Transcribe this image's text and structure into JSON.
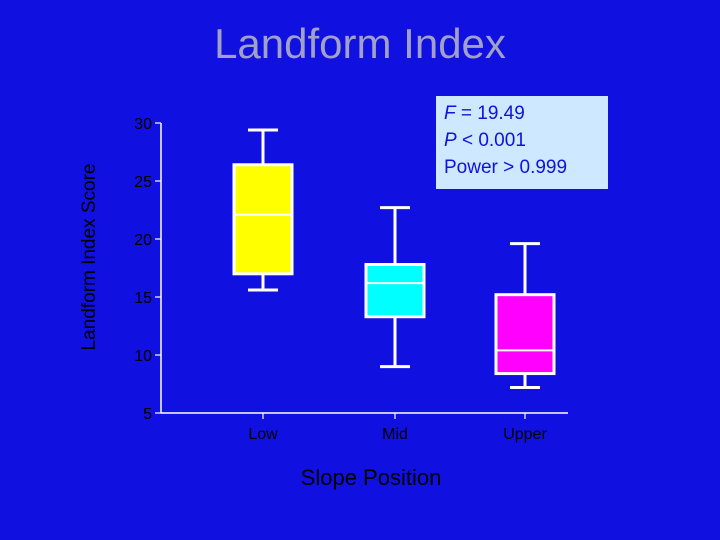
{
  "slide": {
    "title": "Landform Index"
  },
  "stats": {
    "f_symbol": "F",
    "f_text": " = 19.49",
    "p_symbol": "P",
    "p_text": " < 0.001",
    "power_text": "Power > 0.999"
  },
  "colors": {
    "background": "#1010e0",
    "title": "#a0a0c8",
    "axes": "#ffffff",
    "box_border": "#ffffff",
    "stats_fill": "#cde8ff"
  },
  "chart_data": {
    "type": "box",
    "title": "Landform Index",
    "xlabel": "Slope Position",
    "ylabel": "Landform Index Score",
    "categories": [
      "Low",
      "Mid",
      "Upper"
    ],
    "ylim": [
      5,
      30
    ],
    "yticks": [
      5,
      10,
      15,
      20,
      25,
      30
    ],
    "grid": false,
    "series": [
      {
        "category": "Low",
        "min": 15.6,
        "q1": 17.0,
        "median": 22.1,
        "q3": 26.4,
        "max": 29.4,
        "color": "#ffff00"
      },
      {
        "category": "Mid",
        "min": 9.0,
        "q1": 13.3,
        "median": 16.2,
        "q3": 17.8,
        "max": 22.7,
        "color": "#00ffff"
      },
      {
        "category": "Upper",
        "min": 7.2,
        "q1": 8.4,
        "median": 10.4,
        "q3": 15.2,
        "max": 19.6,
        "color": "#ff00ff"
      }
    ]
  }
}
